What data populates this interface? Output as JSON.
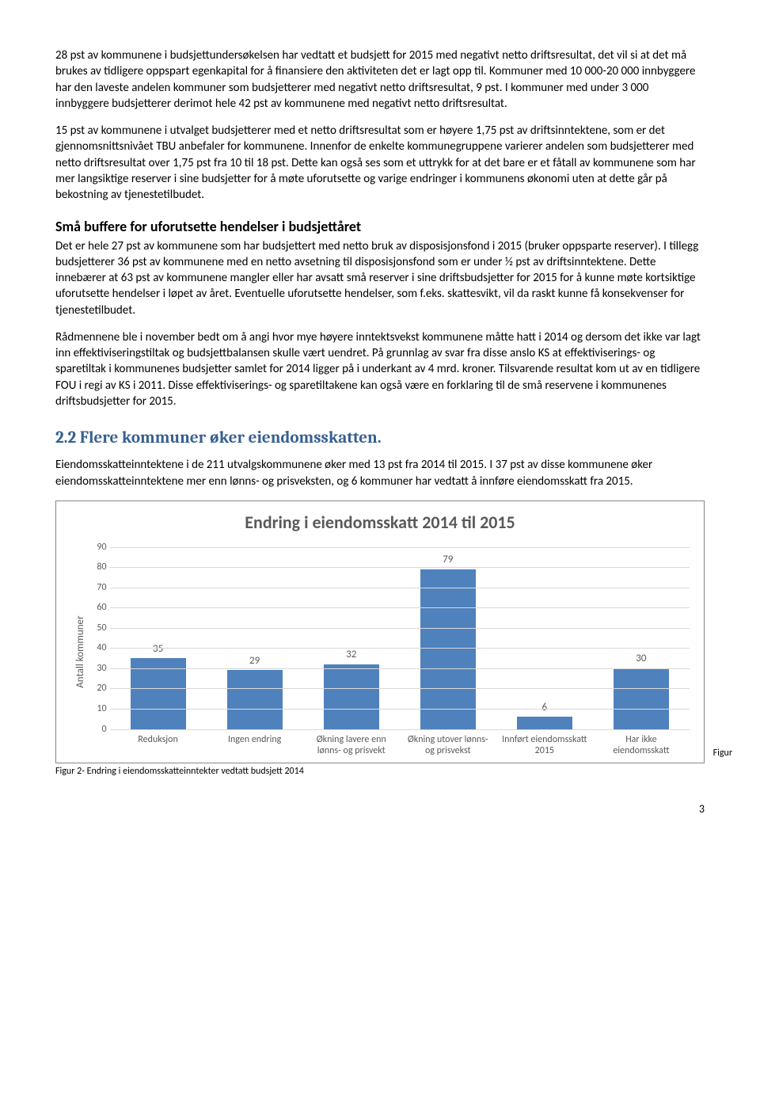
{
  "para1": "28 pst av kommunene i budsjettundersøkelsen har vedtatt et budsjett for 2015 med negativt netto driftsresultat, det vil si at det må brukes av tidligere oppspart egenkapital for å finansiere den aktiviteten det er lagt opp til. Kommuner med 10 000-20 000 innbyggere har den laveste andelen kommuner som budsjetterer med negativt netto driftsresultat, 9 pst. I kommuner med under 3 000 innbyggere budsjetterer derimot hele 42 pst av kommunene med negativt netto driftsresultat.",
  "para2": "15 pst av kommunene i utvalget budsjetterer med et netto driftsresultat som er høyere 1,75 pst av driftsinntektene, som er det gjennomsnittsnivået TBU anbefaler for kommunene. Innenfor de enkelte kommunegruppene varierer andelen som budsjetterer med netto driftsresultat over 1,75 pst fra 10 til 18 pst. Dette kan også ses som et uttrykk for at det bare er et fåtall av kommunene som har mer langsiktige reserver i sine budsjetter for å møte uforutsette og varige endringer i kommunens økonomi uten at dette går på bekostning av tjenestetilbudet.",
  "h_buffer": "Små buffere for uforutsette hendelser i budsjettåret",
  "para3": "Det er hele 27 pst av kommunene som har budsjettert med netto bruk av disposisjonsfond i 2015 (bruker oppsparte reserver). I tillegg budsjetterer 36 pst av kommunene med en netto avsetning til disposisjonsfond som er under ½ pst av driftsinntektene. Dette innebærer at 63 pst av kommunene mangler eller har avsatt små reserver i sine driftsbudsjetter for 2015 for å kunne møte kortsiktige uforutsette hendelser i løpet av året. Eventuelle uforutsette hendelser, som f.eks. skattesvikt, vil da raskt kunne få konsekvenser for tjenestetilbudet.",
  "para4": "Rådmennene ble i november bedt om å angi hvor mye høyere inntektsvekst kommunene måtte hatt i 2014 og dersom det ikke var lagt inn effektiviseringstiltak og budsjettbalansen skulle vært uendret. På grunnlag av svar fra disse anslo KS at effektiviserings- og sparetiltak i kommunenes budsjetter samlet for 2014 ligger på i underkant av 4 mrd. kroner. Tilsvarende resultat kom ut av en tidligere FOU i regi av KS i 2011. Disse effektiviserings- og sparetiltakene kan også være en forklaring til de små reservene i kommunenes driftsbudsjetter for 2015.",
  "section_title": "2.2 Flere kommuner øker eiendomsskatten.",
  "para5": "Eiendomsskatteinntektene i de 211 utvalgskommunene øker med 13 pst fra 2014 til 2015. I 37 pst av disse kommunene øker eiendomsskatteinntektene mer enn lønns- og prisveksten, og 6 kommuner har vedtatt å innføre eiendomsskatt fra 2015.",
  "chart": {
    "title": "Endring i eiendomsskatt 2014 til 2015",
    "ylabel": "Antall kommuner",
    "ymax": 90,
    "ystep": 10,
    "bar_color": "#4f81bd",
    "grid_color": "#d9d9d9",
    "text_color": "#595959",
    "categories": [
      "Reduksjon",
      "Ingen endring",
      "Økning lavere enn lønns- og prisvekt",
      "Økning utover lønns- og prisvekst",
      "Innført eiendomsskatt 2015",
      "Har ikke eiendomsskatt"
    ],
    "values": [
      35,
      29,
      32,
      79,
      6,
      30
    ]
  },
  "caption": "Figur 2- Endring i eiendomsskatteinntekter vedtatt budsjett 2014",
  "figur_word": "Figur",
  "pagenum": "3"
}
